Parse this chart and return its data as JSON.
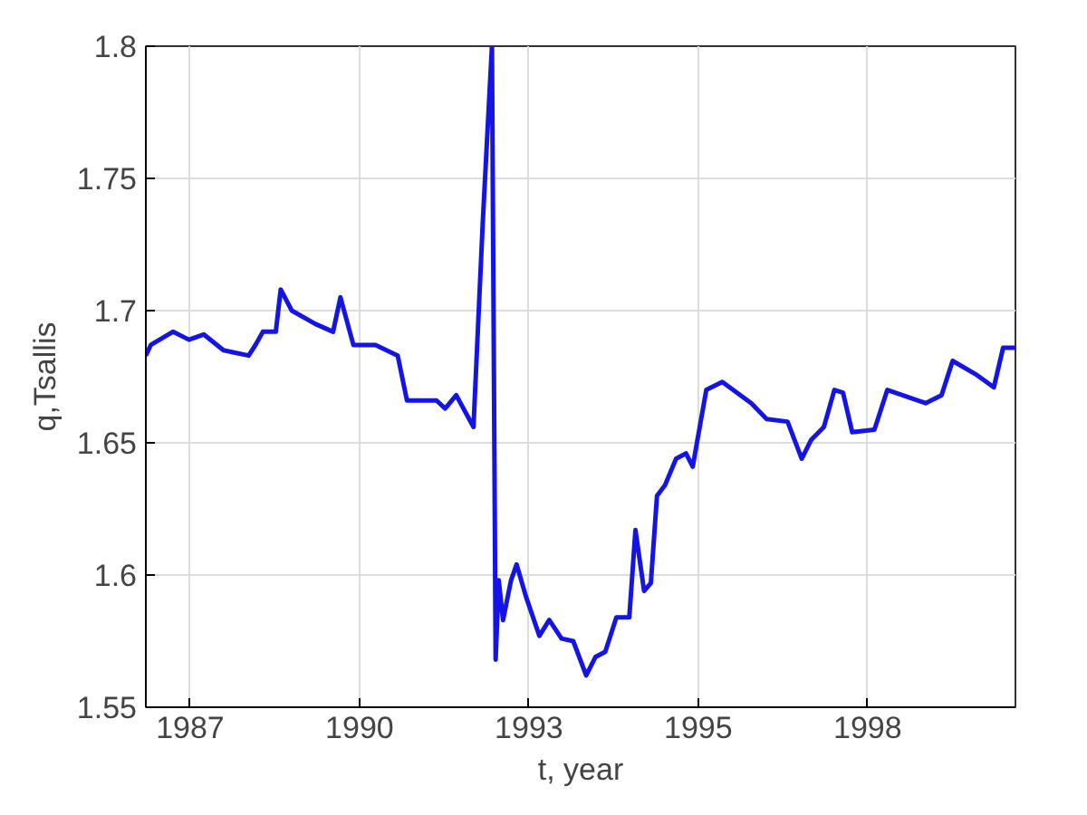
{
  "chart_data": {
    "type": "line",
    "xlabel": "t, year",
    "ylabel": "q,Tsallis",
    "x": [
      1986.28,
      1986.36,
      1986.72,
      1986.98,
      1987.22,
      1987.54,
      1987.95,
      1988.06,
      1988.18,
      1988.39,
      1988.47,
      1988.65,
      1989.03,
      1989.32,
      1989.44,
      1989.65,
      1990.01,
      1990.37,
      1990.52,
      1990.83,
      1991.0,
      1991.14,
      1991.32,
      1991.6,
      1991.75,
      1991.83,
      1991.9,
      1991.96,
      1992.01,
      1992.08,
      1992.21,
      1992.3,
      1992.45,
      1992.67,
      1992.83,
      1993.03,
      1993.22,
      1993.43,
      1993.58,
      1993.74,
      1993.92,
      1994.13,
      1994.23,
      1994.37,
      1994.48,
      1994.58,
      1994.71,
      1994.89,
      1995.05,
      1995.16,
      1995.38,
      1995.64,
      1996.11,
      1996.36,
      1996.7,
      1996.93,
      1997.08,
      1997.29,
      1997.46,
      1997.6,
      1997.75,
      1998.11,
      1998.32,
      1998.94,
      1999.2,
      1999.38,
      1999.75,
      2000.05,
      2000.2,
      2000.4
    ],
    "series": [
      {
        "color": "#1414e6",
        "values": [
          1.683,
          1.687,
          1.692,
          1.689,
          1.691,
          1.685,
          1.683,
          1.687,
          1.692,
          1.692,
          1.708,
          1.7,
          1.695,
          1.692,
          1.705,
          1.687,
          1.687,
          1.683,
          1.666,
          1.666,
          1.666,
          1.663,
          1.668,
          1.656,
          1.733,
          1.769,
          1.8,
          1.568,
          1.598,
          1.583,
          1.598,
          1.604,
          1.592,
          1.577,
          1.583,
          1.576,
          1.575,
          1.562,
          1.569,
          1.571,
          1.584,
          1.584,
          1.617,
          1.594,
          1.597,
          1.63,
          1.634,
          1.644,
          1.646,
          1.641,
          1.67,
          1.673,
          1.665,
          1.659,
          1.658,
          1.644,
          1.651,
          1.656,
          1.67,
          1.669,
          1.654,
          1.655,
          1.67,
          1.665,
          1.668,
          1.681,
          1.676,
          1.671,
          1.686,
          1.686
        ]
      }
    ],
    "xlim": [
      1986.28,
      2000.4
    ],
    "ylim": [
      1.55,
      1.8
    ],
    "xticks": [
      {
        "value": 1987,
        "label": "1987"
      },
      {
        "value": 1989.75,
        "label": "1990"
      },
      {
        "value": 1992.5,
        "label": "1993"
      },
      {
        "value": 1995.25,
        "label": "1995"
      },
      {
        "value": 1998,
        "label": "1998"
      }
    ],
    "yticks": [
      1.55,
      1.6,
      1.65,
      1.7,
      1.75,
      1.8
    ],
    "grid": true,
    "line_style": "solid",
    "marker": "none"
  }
}
